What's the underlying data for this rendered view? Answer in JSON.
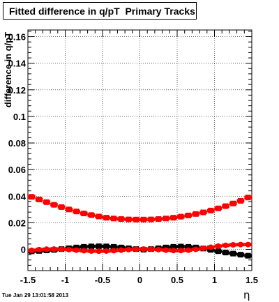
{
  "title": "Fitted difference in q/pT  Primary Tracks",
  "ylabel": "difference in q/pT",
  "xlabel": "η",
  "timestamp": "Tue Jan 29 13:01:58 2013",
  "chart_data": {
    "type": "scatter",
    "title": "Fitted difference in q/pT  Primary Tracks",
    "xlabel": "η",
    "ylabel": "difference in q/pT",
    "xlim": [
      -1.5,
      1.5
    ],
    "ylim": [
      -0.016,
      0.165
    ],
    "xticks": [
      -1.5,
      -1,
      -0.5,
      0,
      0.5,
      1,
      1.5
    ],
    "xtick_labels": [
      "-1.5",
      "-1",
      "-0.5",
      "0",
      "0.5",
      "1",
      "1.5"
    ],
    "yticks": [
      0,
      0.02,
      0.04,
      0.06,
      0.08,
      0.1,
      0.12,
      0.14,
      0.16
    ],
    "ytick_labels": [
      "0",
      "0.02",
      "0.04",
      "0.06",
      "0.08",
      "0.1",
      "0.12",
      "0.14",
      "0.16"
    ],
    "grid": true,
    "series": [
      {
        "color": "#000000",
        "marker": "square",
        "x": [
          -1.45,
          -1.35,
          -1.25,
          -1.15,
          -1.05,
          -0.95,
          -0.85,
          -0.75,
          -0.65,
          -0.55,
          -0.45,
          -0.35,
          -0.25,
          -0.15,
          -0.05,
          0.05,
          0.15,
          0.25,
          0.35,
          0.45,
          0.55,
          0.65,
          0.75,
          0.85,
          0.95,
          1.05,
          1.15,
          1.25,
          1.35,
          1.45
        ],
        "y": [
          -0.0015,
          -0.0012,
          -0.0008,
          -0.0004,
          0.0002,
          0.0008,
          0.0014,
          0.0019,
          0.0022,
          0.0023,
          0.0022,
          0.0019,
          0.0014,
          0.0008,
          0.0002,
          -0.0002,
          0.0002,
          0.0008,
          0.0014,
          0.0019,
          0.0021,
          0.0019,
          0.0014,
          0.0006,
          -0.0004,
          -0.0014,
          -0.0024,
          -0.0032,
          -0.004,
          -0.0048
        ]
      },
      {
        "color": "#ff0000",
        "marker": "square",
        "x": [
          -1.45,
          -1.35,
          -1.25,
          -1.15,
          -1.05,
          -0.95,
          -0.85,
          -0.75,
          -0.65,
          -0.55,
          -0.45,
          -0.35,
          -0.25,
          -0.15,
          -0.05,
          0.05,
          0.15,
          0.25,
          0.35,
          0.45,
          0.55,
          0.65,
          0.75,
          0.85,
          0.95,
          1.05,
          1.15,
          1.25,
          1.35,
          1.45
        ],
        "y": [
          0.0395,
          0.0375,
          0.0355,
          0.0335,
          0.0318,
          0.03,
          0.0285,
          0.027,
          0.0258,
          0.0247,
          0.0238,
          0.0232,
          0.0228,
          0.0225,
          0.0224,
          0.0224,
          0.0225,
          0.0228,
          0.0232,
          0.0238,
          0.0246,
          0.0255,
          0.0266,
          0.0278,
          0.0292,
          0.0308,
          0.0325,
          0.0345,
          0.0365,
          0.039
        ]
      },
      {
        "color": "#ff0000",
        "marker": "circle",
        "x": [
          -1.45,
          -1.35,
          -1.25,
          -1.15,
          -1.05,
          -0.95,
          -0.85,
          -0.75,
          -0.65,
          -0.55,
          -0.45,
          -0.35,
          -0.25,
          -0.15,
          -0.05,
          0.05,
          0.15,
          0.25,
          0.35,
          0.45,
          0.55,
          0.65,
          0.75,
          0.85,
          0.95,
          1.05,
          1.15,
          1.25,
          1.35,
          1.45
        ],
        "y": [
          -0.0008,
          -0.0002,
          0.0001,
          0.0002,
          0.0001,
          -0.0002,
          -0.0006,
          -0.001,
          -0.0013,
          -0.0014,
          -0.0013,
          -0.001,
          -0.0006,
          -0.0002,
          0.0001,
          0.0002,
          0.0001,
          -0.0002,
          -0.0006,
          -0.0009,
          -0.0009,
          -0.0006,
          0.0,
          0.0008,
          0.0016,
          0.0024,
          0.003,
          0.0034,
          0.0036,
          0.0036
        ]
      }
    ]
  }
}
